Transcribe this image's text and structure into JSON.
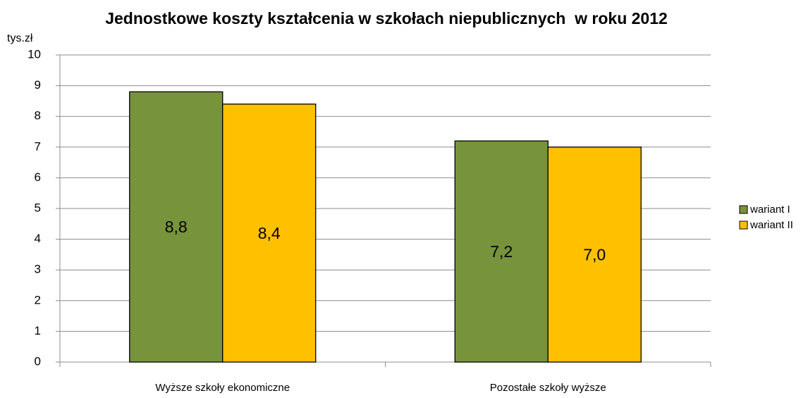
{
  "chart_data": {
    "type": "bar",
    "title": "Jednostkowe koszty kształcenia w szkołach niepublicznych  w roku 2012",
    "y_label": "tys.zł",
    "categories": [
      "Wyższe szkoły ekonomiczne",
      "Pozostałe szkoły wyższe"
    ],
    "series": [
      {
        "name": "wariant I",
        "color": "#77933c",
        "values": [
          8.8,
          7.2
        ],
        "value_labels": [
          "8,8",
          "7,2"
        ]
      },
      {
        "name": "wariant II",
        "color": "#ffc000",
        "values": [
          8.4,
          7.0
        ],
        "value_labels": [
          "8,4",
          "7,0"
        ]
      }
    ],
    "ylim": [
      0,
      10
    ],
    "yticks": [
      0,
      1,
      2,
      3,
      4,
      5,
      6,
      7,
      8,
      9,
      10
    ],
    "grid": true,
    "legend": "right"
  }
}
